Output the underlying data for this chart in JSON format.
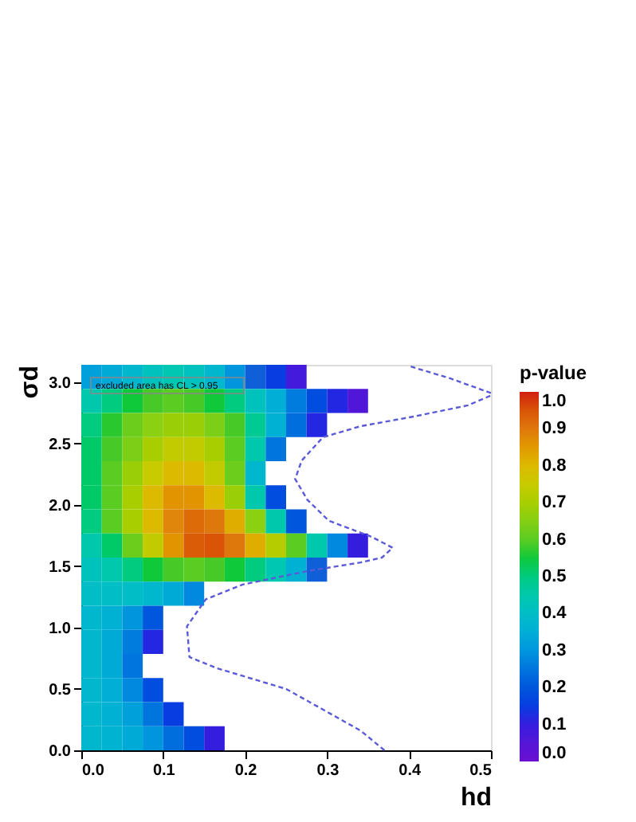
{
  "chart_data": {
    "type": "heatmap",
    "xlabel": "hd",
    "ylabel": "σd",
    "clabel": "p-value",
    "annotations": [
      "excluded area has CL > 0.95"
    ],
    "x": [
      0.0125,
      0.0375,
      0.0625,
      0.0875,
      0.1125,
      0.1375,
      0.1625,
      0.1875,
      0.2125,
      0.2375,
      0.2625,
      0.2875,
      0.3125,
      0.3375,
      0.3625,
      0.3875,
      0.4125,
      0.4375,
      0.4625,
      0.4875
    ],
    "xlim": [
      0,
      0.5
    ],
    "xticks": [
      {
        "value": 0,
        "label": "0.0"
      },
      {
        "value": 0.1,
        "label": "0.1"
      },
      {
        "value": 0.2,
        "label": "0.2"
      },
      {
        "value": 0.3,
        "label": "0.3"
      },
      {
        "value": 0.4,
        "label": "0.4"
      },
      {
        "value": 0.5,
        "label": "0.5"
      }
    ],
    "ylim": [
      0,
      3.14
    ],
    "yticks": [
      {
        "value": 0,
        "label": "0.0"
      },
      {
        "value": 0.5,
        "label": "0.5"
      },
      {
        "value": 1,
        "label": "1.0"
      },
      {
        "value": 1.5,
        "label": "1.5"
      },
      {
        "value": 2,
        "label": "2.0"
      },
      {
        "value": 2.5,
        "label": "2.5"
      },
      {
        "value": 3,
        "label": "3.0"
      }
    ],
    "clim": [
      0,
      1
    ],
    "cticks": [
      {
        "value": 0,
        "label": "0.0"
      },
      {
        "value": 0.1,
        "label": "0.1"
      },
      {
        "value": 0.2,
        "label": "0.2"
      },
      {
        "value": 0.3,
        "label": "0.3"
      },
      {
        "value": 0.4,
        "label": "0.4"
      },
      {
        "value": 0.5,
        "label": "0.5"
      },
      {
        "value": 0.6,
        "label": "0.6"
      },
      {
        "value": 0.7,
        "label": "0.7"
      },
      {
        "value": 0.8,
        "label": "0.8"
      },
      {
        "value": 0.9,
        "label": "0.9"
      },
      {
        "value": 1,
        "label": "1.0"
      }
    ],
    "cells": [
      [
        0.32,
        0.34,
        0.38,
        0.42,
        0.44,
        0.42,
        0.38,
        0.3,
        0.22,
        0.15,
        0.08,
        null,
        null,
        null,
        null,
        null,
        null,
        null,
        null,
        null
      ],
      [
        0.45,
        0.5,
        0.55,
        0.58,
        0.6,
        0.58,
        0.55,
        0.5,
        0.42,
        0.35,
        0.26,
        0.18,
        0.12,
        0.06,
        null,
        null,
        null,
        null,
        null,
        null
      ],
      [
        0.5,
        0.56,
        0.62,
        0.66,
        0.68,
        0.68,
        0.64,
        0.58,
        0.48,
        0.36,
        0.24,
        0.12,
        null,
        null,
        null,
        null,
        null,
        null,
        null,
        null
      ],
      [
        0.52,
        0.58,
        0.64,
        0.7,
        0.74,
        0.74,
        0.7,
        0.6,
        0.45,
        0.25,
        null,
        null,
        null,
        null,
        null,
        null,
        null,
        null,
        null,
        null
      ],
      [
        0.52,
        0.6,
        0.68,
        0.75,
        0.8,
        0.8,
        0.74,
        0.62,
        0.38,
        null,
        null,
        null,
        null,
        null,
        null,
        null,
        null,
        null,
        null,
        null
      ],
      [
        0.52,
        0.6,
        0.7,
        0.8,
        0.86,
        0.86,
        0.8,
        0.68,
        0.45,
        0.18,
        null,
        null,
        null,
        null,
        null,
        null,
        null,
        null,
        null,
        null
      ],
      [
        0.5,
        0.6,
        0.7,
        0.8,
        0.88,
        0.92,
        0.9,
        0.82,
        0.66,
        0.45,
        0.2,
        null,
        null,
        null,
        null,
        null,
        null,
        null,
        null,
        null
      ],
      [
        0.45,
        0.52,
        0.62,
        0.74,
        0.86,
        0.94,
        0.95,
        0.9,
        0.82,
        0.72,
        0.6,
        0.45,
        0.28,
        0.1,
        null,
        null,
        null,
        null,
        null,
        null
      ],
      [
        0.42,
        0.45,
        0.5,
        0.55,
        0.58,
        0.6,
        0.58,
        0.55,
        0.5,
        0.44,
        0.36,
        0.22,
        null,
        null,
        null,
        null,
        null,
        null,
        null,
        null
      ],
      [
        0.4,
        0.4,
        0.4,
        0.38,
        0.34,
        0.28,
        null,
        null,
        null,
        null,
        null,
        null,
        null,
        null,
        null,
        null,
        null,
        null,
        null,
        null
      ],
      [
        0.38,
        0.36,
        0.3,
        0.2,
        null,
        null,
        null,
        null,
        null,
        null,
        null,
        null,
        null,
        null,
        null,
        null,
        null,
        null,
        null,
        null
      ],
      [
        0.38,
        0.34,
        0.26,
        0.12,
        null,
        null,
        null,
        null,
        null,
        null,
        null,
        null,
        null,
        null,
        null,
        null,
        null,
        null,
        null,
        null
      ],
      [
        0.38,
        0.34,
        0.25,
        null,
        null,
        null,
        null,
        null,
        null,
        null,
        null,
        null,
        null,
        null,
        null,
        null,
        null,
        null,
        null,
        null
      ],
      [
        0.38,
        0.35,
        0.28,
        0.18,
        null,
        null,
        null,
        null,
        null,
        null,
        null,
        null,
        null,
        null,
        null,
        null,
        null,
        null,
        null,
        null
      ],
      [
        0.38,
        0.36,
        0.32,
        0.25,
        0.15,
        null,
        null,
        null,
        null,
        null,
        null,
        null,
        null,
        null,
        null,
        null,
        null,
        null,
        null,
        null
      ],
      [
        0.38,
        0.37,
        0.34,
        0.3,
        0.24,
        0.18,
        0.1,
        null,
        null,
        null,
        null,
        null,
        null,
        null,
        null,
        null,
        null,
        null,
        null,
        null
      ]
    ],
    "series": [
      {
        "type": "line",
        "color": "#5a5ad8",
        "line_style": "dashed",
        "marker": "none",
        "x": [
          0.37,
          0.341,
          0.25,
          0.165,
          0.132,
          0.129,
          0.152,
          0.197,
          0.276,
          0.341,
          0.367,
          0.38,
          0.354,
          0.302,
          0.276,
          0.261,
          0.269,
          0.295,
          0.341,
          0.407,
          0.472,
          0.5,
          null,
          0.5,
          0.45,
          0.4
        ],
        "values": [
          0.0,
          0.16,
          0.5,
          0.67,
          0.76,
          1.01,
          1.23,
          1.35,
          1.46,
          1.53,
          1.57,
          1.65,
          1.74,
          1.87,
          2.04,
          2.21,
          2.36,
          2.55,
          2.64,
          2.72,
          2.81,
          2.89,
          null,
          2.91,
          3.03,
          3.13
        ]
      }
    ]
  }
}
